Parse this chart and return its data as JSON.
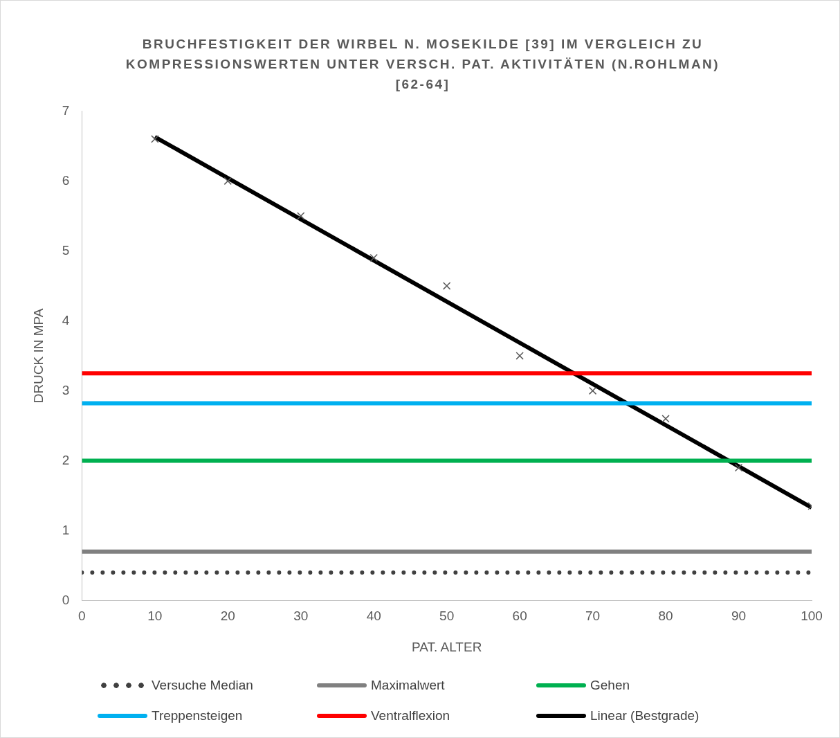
{
  "chart_data": {
    "type": "line",
    "title": "BRUCHFESTIGKEIT DER WIRBEL N. MOSEKILDE [39] IM VERGLEICH ZU KOMPRESSIONSWERTEN UNTER VERSCH. PAT. AKTIVITÄTEN (N.ROHLMAN)[62-64]",
    "xlabel": "PAT. ALTER",
    "ylabel": "DRUCK IN MPA",
    "xlim": [
      0,
      100
    ],
    "xticks": [
      0,
      10,
      20,
      30,
      40,
      50,
      60,
      70,
      80,
      90,
      100
    ],
    "ylim": [
      0,
      7
    ],
    "yticks": [
      0,
      1,
      2,
      3,
      4,
      5,
      6,
      7
    ],
    "grid": false,
    "legend": "bottom",
    "series": [
      {
        "name": "Versuche Median",
        "type": "line",
        "line_style": "dotted",
        "color": "#404040",
        "x": [
          0,
          100
        ],
        "values": [
          0.4,
          0.4
        ]
      },
      {
        "name": "Maximalwert",
        "type": "line",
        "line_style": "solid",
        "color": "#808080",
        "x": [
          0,
          100
        ],
        "values": [
          0.7,
          0.7
        ]
      },
      {
        "name": "Gehen",
        "type": "line",
        "line_style": "solid",
        "color": "#00b050",
        "x": [
          0,
          100
        ],
        "values": [
          2.0,
          2.0
        ]
      },
      {
        "name": "Treppensteigen",
        "type": "line",
        "line_style": "solid",
        "color": "#00b0f0",
        "x": [
          0,
          100
        ],
        "values": [
          2.82,
          2.82
        ]
      },
      {
        "name": "Ventralflexion",
        "type": "line",
        "line_style": "solid",
        "color": "#ff0000",
        "x": [
          0,
          100
        ],
        "values": [
          3.25,
          3.25
        ]
      },
      {
        "type": "scatter",
        "marker": "cross",
        "color": "#595959",
        "x": [
          10,
          20,
          30,
          40,
          50,
          60,
          70,
          80,
          90,
          100
        ],
        "values": [
          6.6,
          6.0,
          5.5,
          4.9,
          4.5,
          3.5,
          3.0,
          2.6,
          1.9,
          1.35
        ]
      },
      {
        "name": "Linear (Bestgrade)",
        "type": "line",
        "line_style": "solid",
        "color": "#000000",
        "x": [
          10,
          100
        ],
        "values": [
          6.63,
          1.33
        ]
      }
    ]
  }
}
